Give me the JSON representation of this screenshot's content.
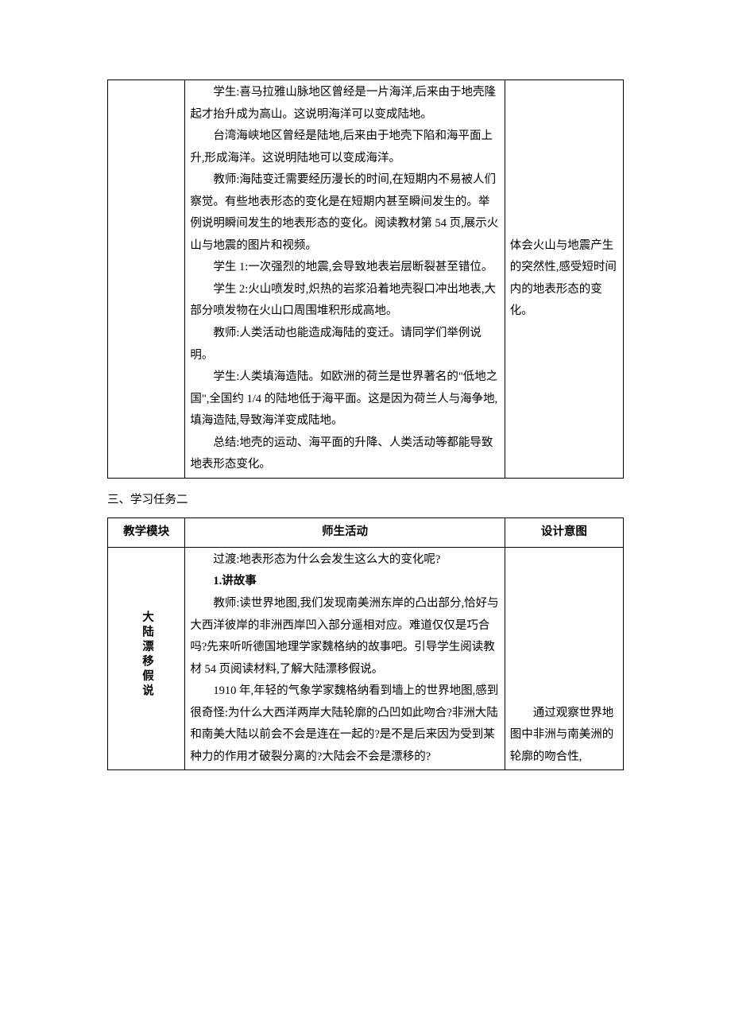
{
  "table1": {
    "activity": {
      "p1": "学生:喜马拉雅山脉地区曾经是一片海洋,后来由于地壳隆起才抬升成为高山。这说明海洋可以变成陆地。",
      "p2": "台湾海峡地区曾经是陆地,后来由于地壳下陷和海平面上升,形成海洋。这说明陆地可以变成海洋。",
      "p3": "教师:海陆变迁需要经历漫长的时间,在短期内不易被人们察觉。有些地表形态的变化是在短期内甚至瞬间发生的。举例说明瞬间发生的地表形态的变化。阅读教材第 54 页,展示火山与地震的图片和视频。",
      "p4": "学生 1:一次强烈的地震,会导致地表岩层断裂甚至错位。",
      "p5": "学生 2:火山喷发时,炽热的岩浆沿着地壳裂口冲出地表,大部分喷发物在火山口周围堆积形成高地。",
      "p6": "教师:人类活动也能造成海陆的变迁。请同学们举例说明。",
      "p7": "学生:人类填海造陆。如欧洲的荷兰是世界著名的\"低地之国\",全国约 1/4 的陆地低于海平面。这是因为荷兰人与海争地,填海造陆,导致海洋变成陆地。",
      "p8": "总结:地壳的运动、海平面的升降、人类活动等都能导致地表形态变化。"
    },
    "intent": "体会火山与地震产生的突然性,感受短时间内的地表形态的变化。"
  },
  "section_heading": "三、学习任务二",
  "table2": {
    "headers": {
      "module": "教学模块",
      "activity": "师生活动",
      "intent": "设计意图"
    },
    "module_label": "大陆漂移假说",
    "activity": {
      "p1": "过渡:地表形态为什么会发生这么大的变化呢?",
      "h1": "1.讲故事",
      "p2": "教师:读世界地图,我们发现南美洲东岸的凸出部分,恰好与大西洋彼岸的非洲西岸凹入部分遥相对应。难道仅仅是巧合吗?先来听听德国地理学家魏格纳的故事吧。引导学生阅读教材 54 页阅读材料,了解大陆漂移假说。",
      "p3": "1910 年,年轻的气象学家魏格纳看到墙上的世界地图,感到很奇怪:为什么大西洋两岸大陆轮廓的凸凹如此吻合?非洲大陆和南美大陆以前会不会是连在一起的?是不是后来因为受到某种力的作用才破裂分离的?大陆会不会是漂移的?"
    },
    "intent": "通过观察世界地图中非洲与南美洲的轮廓的吻合性,"
  }
}
